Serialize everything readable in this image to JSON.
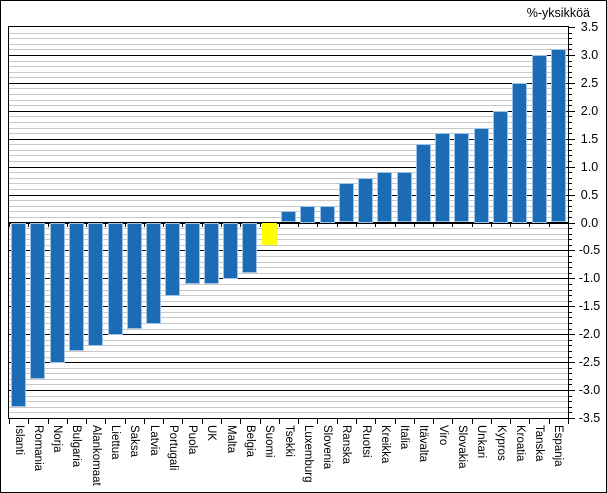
{
  "title": "%-yksikköä",
  "chart_data": {
    "type": "bar",
    "title": "%-yksikköä",
    "categories": [
      "Islanti",
      "Romania",
      "Norja",
      "Bulgaria",
      "Alankomaat",
      "Liettua",
      "Saksa",
      "Latvia",
      "Portugali",
      "Puola",
      "UK",
      "Malta",
      "Belgia",
      "Suomi",
      "Tsekki",
      "Luxemburg",
      "Slovenia",
      "Ranska",
      "Ruotsi",
      "Kreikka",
      "Italia",
      "Itävalta",
      "Viro",
      "Slovakia",
      "Unkari",
      "Kypros",
      "Kroatia",
      "Tanska",
      "Espanja"
    ],
    "values": [
      -3.3,
      -2.8,
      -2.5,
      -2.3,
      -2.2,
      -2.0,
      -1.9,
      -1.8,
      -1.3,
      -1.1,
      -1.1,
      -1.0,
      -0.9,
      -0.4,
      0.2,
      0.3,
      0.3,
      0.7,
      0.8,
      0.9,
      0.9,
      1.4,
      1.6,
      1.6,
      1.7,
      2.0,
      2.5,
      3.0,
      3.1
    ],
    "highlight_category": "Suomi",
    "highlight_index": 13,
    "bar_color": "#1B6CB4",
    "bar_edge_color": "#9DC3E6",
    "highlight_color": "#FFFF00",
    "xlabel": "",
    "ylabel": "%-yksikköä",
    "ylim": [
      -3.5,
      3.5
    ],
    "y_major_step": 0.5,
    "y_minor_step": 0.1,
    "y_axis_side": "right",
    "grid": true,
    "y_tick_labels": [
      "3.5",
      "3.0",
      "2.5",
      "2.0",
      "1.5",
      "1.0",
      "0.5",
      "0.0",
      "-0.5",
      "-1.0",
      "-1.5",
      "-2.0",
      "-2.5",
      "-3.0",
      "-3.5"
    ]
  }
}
